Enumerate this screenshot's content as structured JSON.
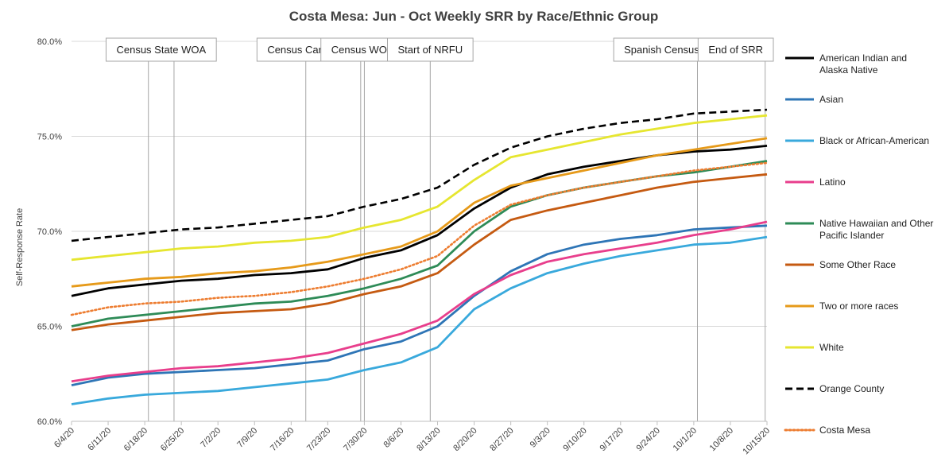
{
  "chart_data": {
    "type": "line",
    "title": "Costa Mesa: Jun - Oct Weekly SRR by Race/Ethnic Group",
    "ylabel": "Self-Response Rate",
    "xlabel": "",
    "ylim": [
      60,
      80.5
    ],
    "yticks": [
      "60.0%",
      "65.0%",
      "70.0%",
      "75.0%",
      "80.0%"
    ],
    "ytick_values": [
      60,
      65,
      70,
      75,
      80
    ],
    "x_range": [
      0,
      19
    ],
    "xticks": [
      "6/4/20",
      "6/11/20",
      "6/18/20",
      "6/25/20",
      "7/2/20",
      "7/9/20",
      "7/16/20",
      "7/23/20",
      "7/30/20",
      "8/6/20",
      "8/13/20",
      "8/20/20",
      "8/27/20",
      "9/3/20",
      "9/10/20",
      "9/17/20",
      "9/24/20",
      "10/1/20",
      "10/8/20",
      "10/15/20"
    ],
    "x": [
      0,
      1,
      2,
      3,
      4,
      5,
      6,
      7,
      8,
      9,
      10,
      11,
      12,
      13,
      14,
      15,
      16,
      17,
      18,
      19
    ],
    "annotations": [
      {
        "label": "Census State WOA",
        "week": 2.1,
        "week2": 2.8
      },
      {
        "label": "Census Caravan",
        "week": 6.4
      },
      {
        "label": "Census WOA",
        "week": 7.9,
        "week2": 8.0
      },
      {
        "label": "Start of NRFU",
        "week": 9.8
      },
      {
        "label": "Spanish Census Day of Action",
        "week": 17.1
      },
      {
        "label": "End of SRR",
        "week": 18.95
      }
    ],
    "series": [
      {
        "name": "American Indian and Alaska Native",
        "legend_lines": [
          "American Indian and",
          "Alaska Native"
        ],
        "color": "#000000",
        "dash": "solid",
        "values": [
          66.6,
          67.0,
          67.2,
          67.4,
          67.5,
          67.7,
          67.8,
          68.0,
          68.6,
          69.0,
          69.8,
          71.2,
          72.3,
          73.0,
          73.4,
          73.7,
          74.0,
          74.2,
          74.3,
          74.5
        ]
      },
      {
        "name": "Asian",
        "legend_lines": [
          "Asian"
        ],
        "color": "#2e75b6",
        "dash": "solid",
        "values": [
          61.9,
          62.3,
          62.5,
          62.6,
          62.7,
          62.8,
          63.0,
          63.2,
          63.8,
          64.2,
          65.0,
          66.6,
          67.9,
          68.8,
          69.3,
          69.6,
          69.8,
          70.1,
          70.2,
          70.3
        ]
      },
      {
        "name": "Black or African-American",
        "legend_lines": [
          "Black or African-American"
        ],
        "color": "#39a9dc",
        "dash": "solid",
        "values": [
          60.9,
          61.2,
          61.4,
          61.5,
          61.6,
          61.8,
          62.0,
          62.2,
          62.7,
          63.1,
          63.9,
          65.9,
          67.0,
          67.8,
          68.3,
          68.7,
          69.0,
          69.3,
          69.4,
          69.7
        ]
      },
      {
        "name": "Latino",
        "legend_lines": [
          "Latino"
        ],
        "color": "#e83e8c",
        "dash": "solid",
        "values": [
          62.1,
          62.4,
          62.6,
          62.8,
          62.9,
          63.1,
          63.3,
          63.6,
          64.1,
          64.6,
          65.3,
          66.7,
          67.7,
          68.4,
          68.8,
          69.1,
          69.4,
          69.8,
          70.1,
          70.5
        ]
      },
      {
        "name": "Native Hawaiian and Other Pacific Islander",
        "legend_lines": [
          "Native Hawaiian and Other",
          "Pacific Islander"
        ],
        "color": "#2e8b57",
        "dash": "solid",
        "values": [
          65.0,
          65.4,
          65.6,
          65.8,
          66.0,
          66.2,
          66.3,
          66.6,
          67.0,
          67.5,
          68.2,
          70.0,
          71.3,
          71.9,
          72.3,
          72.6,
          72.9,
          73.1,
          73.4,
          73.7
        ]
      },
      {
        "name": "Some Other Race",
        "legend_lines": [
          "Some Other Race"
        ],
        "color": "#c55a11",
        "dash": "solid",
        "values": [
          64.8,
          65.1,
          65.3,
          65.5,
          65.7,
          65.8,
          65.9,
          66.2,
          66.7,
          67.1,
          67.8,
          69.3,
          70.6,
          71.1,
          71.5,
          71.9,
          72.3,
          72.6,
          72.8,
          73.0
        ]
      },
      {
        "name": "Two or more races",
        "legend_lines": [
          "Two or more races"
        ],
        "color": "#e69a1a",
        "dash": "solid",
        "values": [
          67.1,
          67.3,
          67.5,
          67.6,
          67.8,
          67.9,
          68.1,
          68.4,
          68.8,
          69.2,
          70.0,
          71.5,
          72.4,
          72.8,
          73.2,
          73.6,
          74.0,
          74.3,
          74.6,
          74.9
        ]
      },
      {
        "name": "White",
        "legend_lines": [
          "White"
        ],
        "color": "#e6e630",
        "dash": "solid",
        "values": [
          68.5,
          68.7,
          68.9,
          69.1,
          69.2,
          69.4,
          69.5,
          69.7,
          70.2,
          70.6,
          71.3,
          72.7,
          73.9,
          74.3,
          74.7,
          75.1,
          75.4,
          75.7,
          75.9,
          76.1
        ]
      },
      {
        "name": "Orange County",
        "legend_lines": [
          "Orange County"
        ],
        "color": "#000000",
        "dash": "dashed",
        "values": [
          69.5,
          69.7,
          69.9,
          70.1,
          70.2,
          70.4,
          70.6,
          70.8,
          71.3,
          71.7,
          72.3,
          73.5,
          74.4,
          75.0,
          75.4,
          75.7,
          75.9,
          76.2,
          76.3,
          76.4
        ]
      },
      {
        "name": "Costa Mesa",
        "legend_lines": [
          "Costa Mesa"
        ],
        "color": "#ed7d31",
        "dash": "dotted",
        "values": [
          65.6,
          66.0,
          66.2,
          66.3,
          66.5,
          66.6,
          66.8,
          67.1,
          67.5,
          68.0,
          68.7,
          70.3,
          71.4,
          71.9,
          72.3,
          72.6,
          72.9,
          73.2,
          73.4,
          73.6
        ]
      }
    ]
  }
}
